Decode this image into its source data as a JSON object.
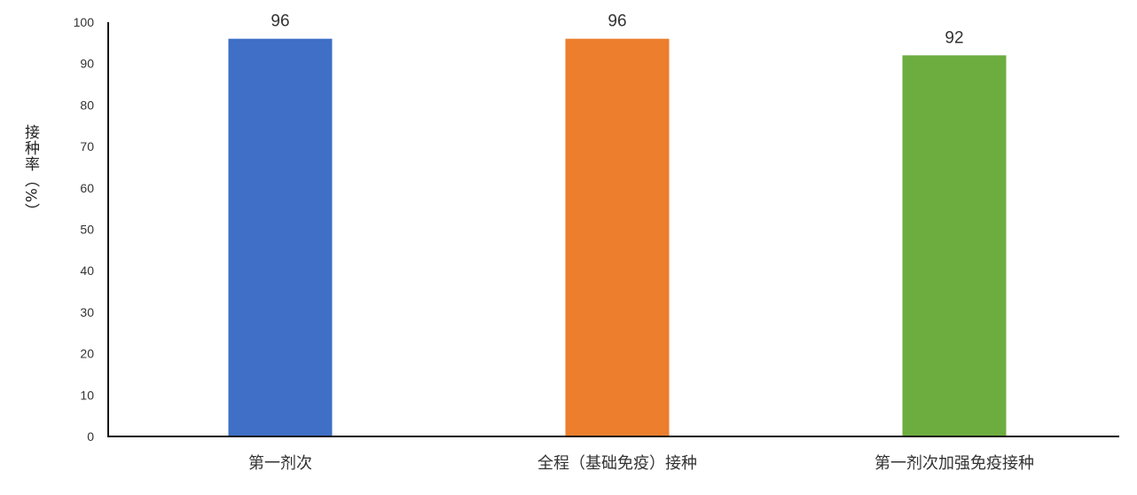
{
  "chart_data": {
    "type": "bar",
    "categories": [
      "第一剂次",
      "全程（基础免疫）接种",
      "第一剂次加强免疫接种"
    ],
    "values": [
      96,
      96,
      92
    ],
    "colors": [
      "#3F6FC6",
      "#EC7E2E",
      "#6DAD3F"
    ],
    "title": "",
    "xlabel": "",
    "ylabel": "接种率（%）",
    "ylim": [
      0,
      100
    ],
    "yticks": [
      0,
      10,
      20,
      30,
      40,
      50,
      60,
      70,
      80,
      90,
      100
    ],
    "data_labels": true,
    "grid": false,
    "legend": "none"
  }
}
